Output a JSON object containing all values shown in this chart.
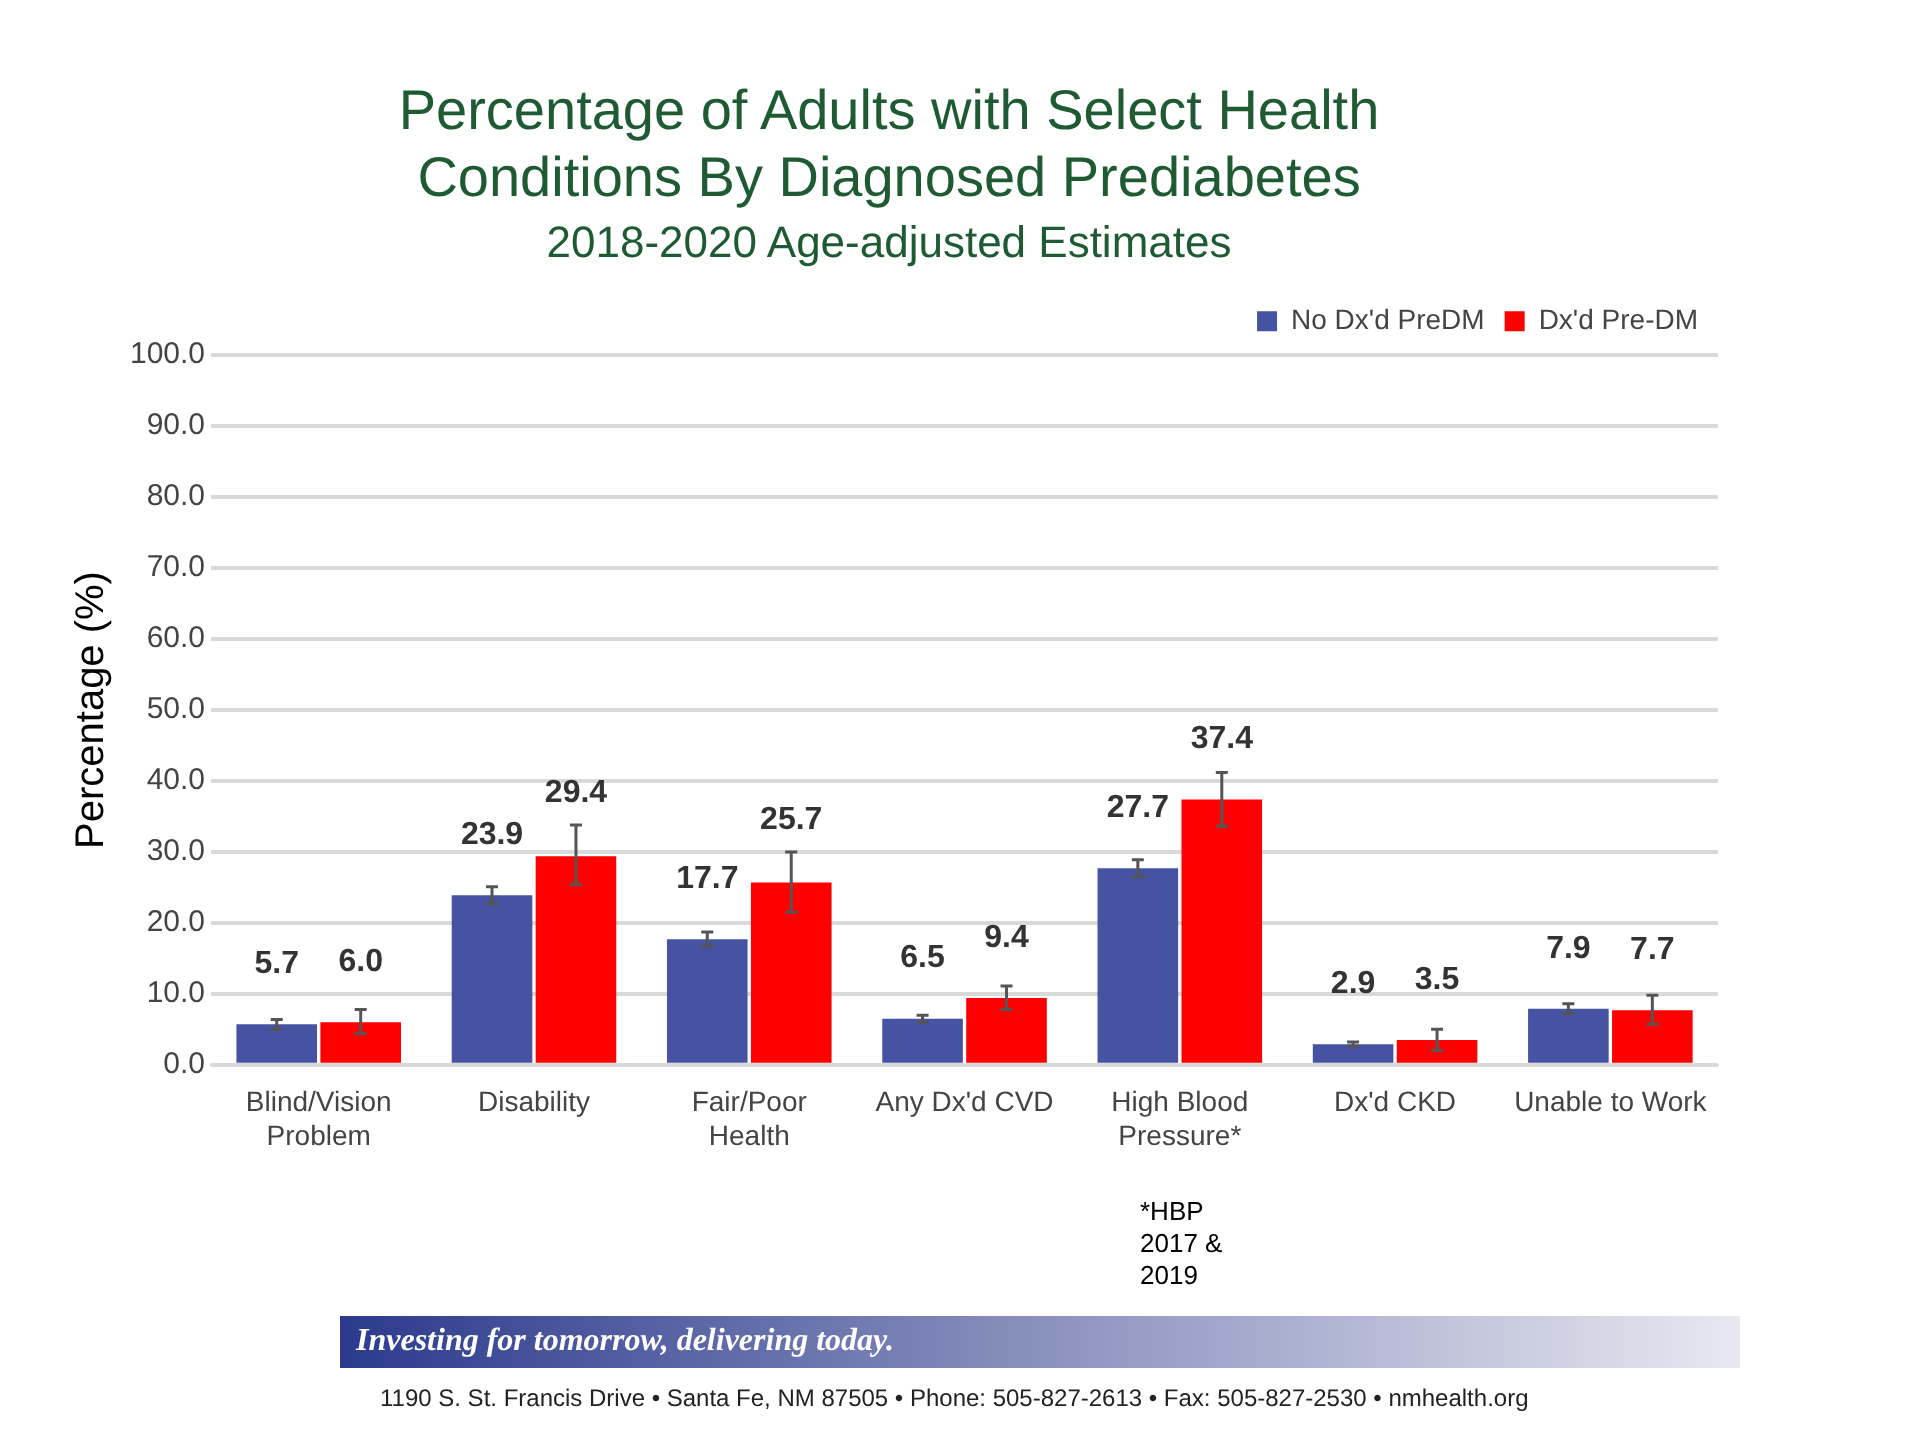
{
  "chart_data": {
    "type": "bar",
    "title": [
      "Percentage of Adults with Select Health",
      "Conditions By Diagnosed Prediabetes"
    ],
    "subtitle": "2018-2020 Age-adjusted Estimates",
    "ylabel": "Percentage (%)",
    "categories": [
      "Blind/Vision Problem",
      "Disability",
      "Fair/Poor Health",
      "Any Dx'd CVD",
      "High Blood Pressure*",
      "Dx'd CKD",
      "Unable to Work"
    ],
    "series": [
      {
        "name": "No Dx'd PreDM",
        "color": "#4653a2",
        "values": [
          5.7,
          23.9,
          17.7,
          6.5,
          27.7,
          2.9,
          7.9
        ],
        "value_labels": [
          "5.7",
          "23.9",
          "17.7",
          "6.5",
          "27.7",
          "2.9",
          "7.9"
        ],
        "errors": [
          [
            5.0,
            6.4
          ],
          [
            22.7,
            25.1
          ],
          [
            16.7,
            18.7
          ],
          [
            6.0,
            7.0
          ],
          [
            26.5,
            28.9
          ],
          [
            2.6,
            3.2
          ],
          [
            7.2,
            8.6
          ]
        ]
      },
      {
        "name": "Dx'd Pre-DM",
        "color": "#ff0000",
        "values": [
          6.0,
          29.4,
          25.7,
          9.4,
          37.4,
          3.5,
          7.7
        ],
        "value_labels": [
          "6.0",
          "29.4",
          "25.7",
          "9.4",
          "37.4",
          "3.5",
          "7.7"
        ],
        "errors": [
          [
            4.4,
            7.8
          ],
          [
            25.4,
            33.8
          ],
          [
            21.5,
            30.0
          ],
          [
            7.8,
            11.1
          ],
          [
            33.6,
            41.2
          ],
          [
            2.0,
            5.0
          ],
          [
            5.7,
            9.8
          ]
        ]
      }
    ],
    "ylim": [
      0,
      100
    ],
    "yticks": [
      {
        "value": 0,
        "label": "0.0"
      },
      {
        "value": 10,
        "label": "10.0"
      },
      {
        "value": 20,
        "label": "20.0"
      },
      {
        "value": 30,
        "label": "30.0"
      },
      {
        "value": 40,
        "label": "40.0"
      },
      {
        "value": 50,
        "label": "50.0"
      },
      {
        "value": 60,
        "label": "60.0"
      },
      {
        "value": 70,
        "label": "70.0"
      },
      {
        "value": 80,
        "label": "80.0"
      },
      {
        "value": 90,
        "label": "90.0"
      },
      {
        "value": 100,
        "label": "100.0"
      }
    ],
    "grid": "y",
    "legend": "top right",
    "annotations": [
      "*HBP 2017 & 2019",
      "Investing for tomorrow, delivering today.",
      "1190 S. St. Francis Drive • Santa Fe, NM 87505 • Phone: 505-827-2613 • Fax: 505-827-2530 • nmhealth.org"
    ]
  }
}
